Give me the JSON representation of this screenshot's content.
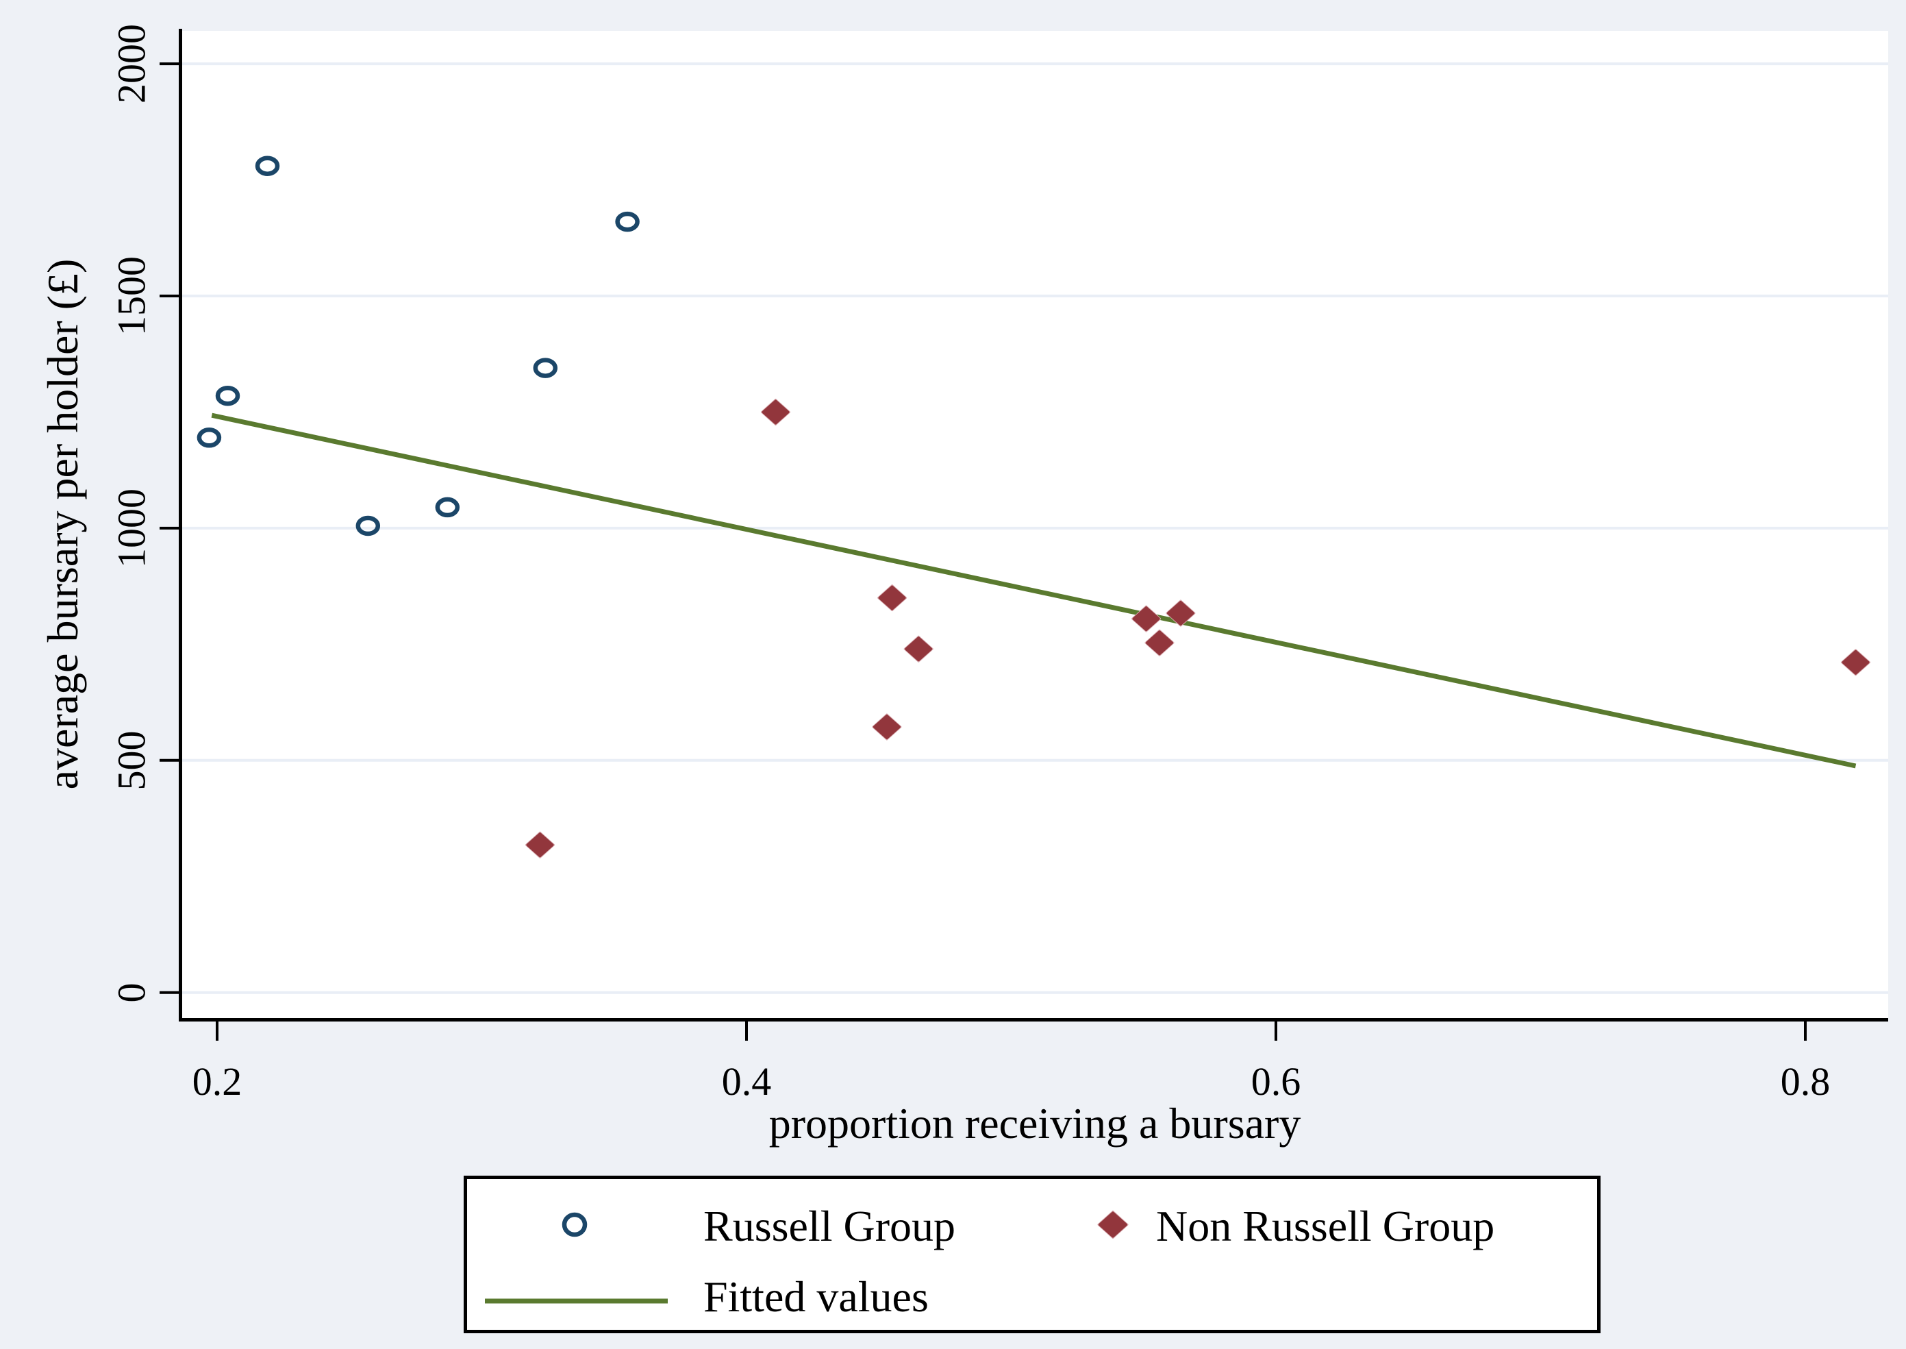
{
  "figure": {
    "background": "#eef1f6",
    "plot_background": "#ffffff",
    "axis_color": "#000000",
    "gridline_color": "#e9eef6",
    "text_color": "#000000"
  },
  "chart_data": {
    "type": "scatter",
    "title": "",
    "xlabel": "proportion receiving a bursary",
    "ylabel": "average bursary per holder (£)",
    "x_ticks": [
      0.2,
      0.4,
      0.6,
      0.8
    ],
    "y_ticks": [
      0,
      500,
      1000,
      1500,
      2000
    ],
    "xlim": [
      0.1868,
      0.8313
    ],
    "ylim": [
      -55,
      2071
    ],
    "grid": "horizontal-only",
    "legend_position": "bottom",
    "series": [
      {
        "name": "Russell Group",
        "type": "scatter",
        "marker": "hollow-circle",
        "color": "#1b4668",
        "points": [
          [
            0.219,
            1780
          ],
          [
            0.355,
            1660
          ],
          [
            0.324,
            1345
          ],
          [
            0.204,
            1285
          ],
          [
            0.197,
            1195
          ],
          [
            0.287,
            1045
          ],
          [
            0.257,
            1005
          ]
        ]
      },
      {
        "name": "Non Russell Group",
        "type": "scatter",
        "marker": "filled-diamond",
        "color": "#92363c",
        "halo_color": "#d9abb0",
        "points": [
          [
            0.411,
            1250
          ],
          [
            0.455,
            850
          ],
          [
            0.465,
            740
          ],
          [
            0.453,
            572
          ],
          [
            0.322,
            318
          ],
          [
            0.551,
            805
          ],
          [
            0.564,
            817
          ],
          [
            0.556,
            753
          ],
          [
            0.819,
            711
          ]
        ]
      },
      {
        "name": "Fitted values",
        "type": "line",
        "color": "#5a7a2f",
        "points": [
          [
            0.198,
            1243
          ],
          [
            0.819,
            488
          ]
        ]
      }
    ]
  }
}
